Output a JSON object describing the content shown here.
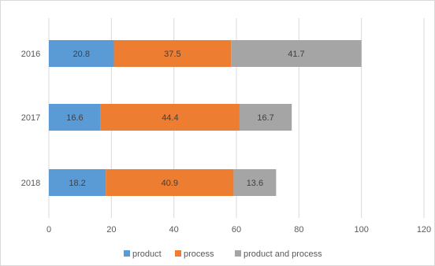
{
  "chart_data": {
    "type": "bar",
    "orientation": "horizontal",
    "stacked": true,
    "categories": [
      "2016",
      "2017",
      "2018"
    ],
    "series": [
      {
        "name": "product",
        "values": [
          20.8,
          16.6,
          18.2
        ],
        "color": "#5b9bd5"
      },
      {
        "name": "process",
        "values": [
          37.5,
          44.4,
          40.9
        ],
        "color": "#ed7d31"
      },
      {
        "name": "product and process",
        "values": [
          41.7,
          16.7,
          13.6
        ],
        "color": "#a5a5a5"
      }
    ],
    "xlim": [
      0,
      120
    ],
    "xticks": [
      0,
      20,
      40,
      60,
      80,
      100,
      120
    ],
    "grid": "vertical",
    "legend": "bottom",
    "title": "",
    "xlabel": "",
    "ylabel": ""
  }
}
